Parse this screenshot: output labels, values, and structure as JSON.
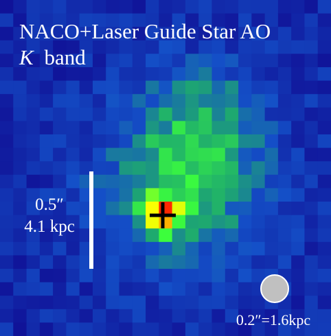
{
  "title": "NACO+Laser Guide Star AO",
  "band": {
    "letter": "K",
    "text": "band"
  },
  "scale_bar": {
    "angle": "0.5″",
    "distance": "4.1 kpc"
  },
  "beam_label": "0.2″=1.6kpc"
}
